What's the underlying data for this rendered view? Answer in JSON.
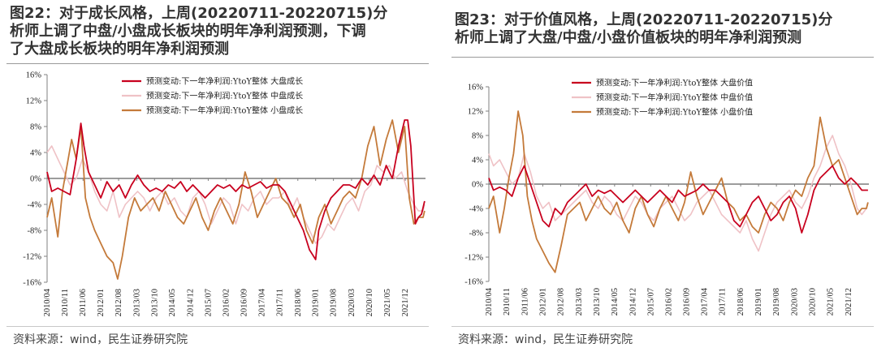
{
  "colors": {
    "large": "#c8001e",
    "mid": "#efc2c6",
    "small": "#c47a3a",
    "axis": "#808080"
  },
  "source": "资料来源：wind，民生证券研究院",
  "chart_data": [
    {
      "type": "line",
      "title": "图22：对于成长风格，上周(20220711-20220715)分析师上调了中盘/小盘成长板块的明年净利润预测，下调了大盘成长板块的明年净利润预测",
      "title_lines": [
        "图22：对于成长风格，上周(20220711-20220715)分",
        "析师上调了中盘/小盘成长板块的明年净利润预测，下调",
        "了大盘成长板块的明年净利润预测"
      ],
      "ylim": [
        -16,
        16
      ],
      "yticks": [
        16,
        12,
        8,
        4,
        0,
        -4,
        -8,
        -12,
        -16
      ],
      "ytick_labels": [
        "16%",
        "12%",
        "8%",
        "4%",
        "0%",
        "-4%",
        "-8%",
        "-12%",
        "-16%"
      ],
      "x_range": [
        2010.25,
        2022.58
      ],
      "xticks": [
        2010.25,
        2010.83,
        2011.42,
        2012.0,
        2012.58,
        2013.17,
        2013.75,
        2014.33,
        2014.92,
        2015.5,
        2016.08,
        2016.67,
        2017.25,
        2017.83,
        2018.42,
        2019.0,
        2019.58,
        2020.17,
        2020.75,
        2021.33,
        2021.92
      ],
      "xtick_labels": [
        "2010/04",
        "2010/11",
        "2011/06",
        "2012/01",
        "2012/08",
        "2013/03",
        "2013/10",
        "2014/05",
        "2014/12",
        "2015/07",
        "2016/02",
        "2016/09",
        "2017/04",
        "2017/11",
        "2018/06",
        "2019/01",
        "2019/08",
        "2020/03",
        "2020/10",
        "2021/05",
        "2021/12"
      ],
      "series": [
        {
          "name": "预测变动:下一年净利润:YtoY整体 大盘成长",
          "color_key": "large",
          "x": [
            2010.25,
            2010.4,
            2010.6,
            2010.8,
            2011.0,
            2011.2,
            2011.35,
            2011.45,
            2011.6,
            2011.8,
            2012.0,
            2012.2,
            2012.4,
            2012.6,
            2012.8,
            2013.0,
            2013.2,
            2013.4,
            2013.6,
            2013.8,
            2014.0,
            2014.2,
            2014.4,
            2014.6,
            2014.8,
            2015.0,
            2015.2,
            2015.4,
            2015.6,
            2015.8,
            2016.0,
            2016.2,
            2016.4,
            2016.6,
            2016.8,
            2017.0,
            2017.2,
            2017.4,
            2017.6,
            2017.8,
            2018.0,
            2018.2,
            2018.4,
            2018.6,
            2018.8,
            2019.0,
            2019.1,
            2019.3,
            2019.5,
            2019.7,
            2019.9,
            2020.1,
            2020.3,
            2020.5,
            2020.7,
            2020.9,
            2021.1,
            2021.3,
            2021.5,
            2021.7,
            2021.9,
            2022.0,
            2022.1,
            2022.25,
            2022.35,
            2022.45,
            2022.55
          ],
          "y": [
            1,
            -2,
            -1.5,
            -2,
            -2.5,
            3,
            8.5,
            5,
            1,
            -1,
            -3,
            -0.5,
            -2,
            -1,
            -3,
            -1,
            0.5,
            -1,
            -2,
            -1.5,
            -2,
            -1,
            -1.5,
            -0.5,
            -2,
            -1,
            -2,
            -3,
            -2,
            -1,
            -1.5,
            -1,
            -2,
            -1,
            -1.5,
            -1,
            -0.5,
            -1.5,
            -1,
            -1,
            -2,
            -4,
            -6,
            -8,
            -11,
            -12.5,
            -8,
            -5,
            -3,
            -2,
            -1,
            -1,
            -1.5,
            0,
            -1,
            0.5,
            -1,
            2,
            0,
            5,
            9,
            9,
            5,
            -7,
            -6,
            -5.5,
            -3.5
          ]
        },
        {
          "name": "预测变动:下一年净利润:YtoY整体 中盘成长",
          "color_key": "mid",
          "x": [
            2010.25,
            2010.4,
            2010.6,
            2010.8,
            2011.0,
            2011.2,
            2011.4,
            2011.6,
            2011.8,
            2012.0,
            2012.2,
            2012.4,
            2012.6,
            2012.8,
            2013.0,
            2013.2,
            2013.4,
            2013.6,
            2013.8,
            2014.0,
            2014.2,
            2014.4,
            2014.6,
            2014.8,
            2015.0,
            2015.2,
            2015.4,
            2015.6,
            2015.8,
            2016.0,
            2016.2,
            2016.4,
            2016.6,
            2016.8,
            2017.0,
            2017.2,
            2017.4,
            2017.6,
            2017.8,
            2018.0,
            2018.2,
            2018.4,
            2018.6,
            2018.8,
            2019.0,
            2019.2,
            2019.4,
            2019.6,
            2019.8,
            2020.0,
            2020.2,
            2020.4,
            2020.6,
            2020.8,
            2021.0,
            2021.2,
            2021.4,
            2021.6,
            2021.8,
            2022.0,
            2022.2,
            2022.35,
            2022.5,
            2022.55
          ],
          "y": [
            4,
            5,
            3,
            1,
            -1,
            0,
            3,
            1,
            -2,
            -4,
            -5,
            -2,
            -6,
            -4,
            -3,
            -2,
            -3,
            -5,
            -3,
            -2,
            -4,
            -3,
            -5,
            -6,
            -3,
            -2,
            -4,
            -7,
            -5,
            -3,
            -4,
            -7,
            -4,
            -5,
            -3,
            -2,
            -4,
            -3,
            -3,
            -2,
            -5,
            -3,
            -6,
            -8,
            -10,
            -9,
            -7,
            -8,
            -6,
            -4,
            -3,
            -5,
            -2,
            -1,
            2,
            1,
            2,
            0,
            1,
            -2,
            -4,
            -5,
            -5,
            -4
          ]
        },
        {
          "name": "预测变动:下一年净利润:YtoY整体 小盘成长",
          "color_key": "small",
          "x": [
            2010.25,
            2010.4,
            2010.6,
            2010.75,
            2010.9,
            2011.05,
            2011.2,
            2011.35,
            2011.5,
            2011.65,
            2011.8,
            2012.0,
            2012.2,
            2012.4,
            2012.55,
            2012.7,
            2012.9,
            2013.1,
            2013.3,
            2013.5,
            2013.7,
            2013.9,
            2014.1,
            2014.3,
            2014.5,
            2014.7,
            2014.9,
            2015.1,
            2015.3,
            2015.5,
            2015.7,
            2015.9,
            2016.1,
            2016.3,
            2016.5,
            2016.7,
            2016.9,
            2017.1,
            2017.3,
            2017.5,
            2017.7,
            2017.9,
            2018.1,
            2018.3,
            2018.5,
            2018.7,
            2018.9,
            2019.1,
            2019.3,
            2019.5,
            2019.7,
            2019.9,
            2020.1,
            2020.3,
            2020.5,
            2020.7,
            2020.9,
            2021.1,
            2021.3,
            2021.5,
            2021.7,
            2021.9,
            2022.05,
            2022.2,
            2022.35,
            2022.5,
            2022.55
          ],
          "y": [
            -6,
            -3,
            -9,
            -2,
            2,
            6,
            3,
            8,
            -3,
            -6,
            -8,
            -10,
            -12,
            -13,
            -15.5,
            -12,
            -6,
            -3,
            -5,
            -4,
            -3,
            -5,
            -2,
            -4,
            -6,
            -7,
            -5,
            -3,
            -6,
            -8,
            -5,
            -3,
            -5,
            -7,
            -4,
            1,
            -2,
            -6,
            -4,
            -2,
            0,
            -3,
            -4,
            -6,
            -4,
            -8,
            -10,
            -6,
            -4,
            -7,
            -5,
            -3,
            -2,
            -3,
            0,
            5,
            8,
            2,
            6,
            9,
            4,
            8,
            -3,
            -7,
            -6,
            -6,
            -5
          ]
        }
      ]
    },
    {
      "type": "line",
      "title": "图23：对于价值风格，上周(20220711-20220715)分析师上调了大盘/中盘/小盘价值板块的明年净利润预测",
      "title_lines": [
        "图23：对于价值风格，上周(20220711-20220715)分",
        "析师上调了大盘/中盘/小盘价值板块的明年净利润预测"
      ],
      "ylim": [
        -16,
        16
      ],
      "yticks": [
        16,
        12,
        8,
        4,
        0,
        -4,
        -8,
        -12,
        -16
      ],
      "ytick_labels": [
        "16%",
        "12%",
        "8%",
        "4%",
        "0%",
        "-4%",
        "-8%",
        "-12%",
        "-16%"
      ],
      "x_range": [
        2010.25,
        2022.58
      ],
      "xticks": [
        2010.25,
        2010.83,
        2011.42,
        2012.0,
        2012.58,
        2013.17,
        2013.75,
        2014.33,
        2014.92,
        2015.5,
        2016.08,
        2016.67,
        2017.25,
        2017.83,
        2018.42,
        2019.0,
        2019.58,
        2020.17,
        2020.75,
        2021.33,
        2021.92
      ],
      "xtick_labels": [
        "2010/04",
        "2010/11",
        "2011/06",
        "2012/01",
        "2012/08",
        "2013/03",
        "2013/10",
        "2014/05",
        "2014/12",
        "2015/07",
        "2016/02",
        "2016/09",
        "2017/04",
        "2017/11",
        "2018/06",
        "2019/01",
        "2019/08",
        "2020/03",
        "2020/10",
        "2021/05",
        "2021/12"
      ],
      "series": [
        {
          "name": "预测变动:下一年净利润:YtoY整体 大盘价值",
          "color_key": "large",
          "x": [
            2010.25,
            2010.4,
            2010.6,
            2010.8,
            2011.0,
            2011.2,
            2011.4,
            2011.6,
            2011.8,
            2012.0,
            2012.2,
            2012.4,
            2012.6,
            2012.8,
            2013.0,
            2013.2,
            2013.4,
            2013.6,
            2013.8,
            2014.0,
            2014.2,
            2014.4,
            2014.6,
            2014.8,
            2015.0,
            2015.2,
            2015.4,
            2015.6,
            2015.8,
            2016.0,
            2016.2,
            2016.4,
            2016.6,
            2016.8,
            2017.0,
            2017.2,
            2017.4,
            2017.6,
            2017.8,
            2018.0,
            2018.2,
            2018.4,
            2018.6,
            2018.8,
            2019.0,
            2019.2,
            2019.4,
            2019.6,
            2019.8,
            2020.0,
            2020.2,
            2020.4,
            2020.6,
            2020.8,
            2021.0,
            2021.2,
            2021.4,
            2021.6,
            2021.8,
            2022.0,
            2022.2,
            2022.35,
            2022.5,
            2022.55
          ],
          "y": [
            1,
            -1,
            -0.5,
            -1,
            -2,
            1,
            3,
            0,
            -3,
            -6,
            -7,
            -4,
            -5,
            -3,
            -2,
            -1,
            0,
            -2,
            -1,
            -1.5,
            -1,
            -2,
            -3,
            -2,
            -1,
            -2,
            -3,
            -2,
            -1,
            -2,
            -3,
            -1,
            -2,
            -1.5,
            -1,
            0,
            -1,
            -1,
            -2,
            -3,
            -6,
            -7,
            -5,
            -3,
            -2,
            -4,
            -6,
            -5,
            -3,
            -2,
            -4,
            -8,
            -5,
            -1,
            1,
            2,
            3,
            1,
            0,
            1,
            0,
            -1,
            -1,
            -1
          ]
        },
        {
          "name": "预测变动:下一年净利润:YtoY整体 中盘价值",
          "color_key": "mid",
          "x": [
            2010.25,
            2010.4,
            2010.6,
            2010.8,
            2011.0,
            2011.2,
            2011.4,
            2011.6,
            2011.8,
            2012.0,
            2012.2,
            2012.4,
            2012.6,
            2012.8,
            2013.0,
            2013.2,
            2013.4,
            2013.6,
            2013.8,
            2014.0,
            2014.2,
            2014.4,
            2014.6,
            2014.8,
            2015.0,
            2015.2,
            2015.4,
            2015.6,
            2015.8,
            2016.0,
            2016.2,
            2016.4,
            2016.6,
            2016.8,
            2017.0,
            2017.2,
            2017.4,
            2017.6,
            2017.8,
            2018.0,
            2018.2,
            2018.4,
            2018.6,
            2018.8,
            2019.0,
            2019.2,
            2019.4,
            2019.6,
            2019.8,
            2020.0,
            2020.2,
            2020.4,
            2020.6,
            2020.8,
            2021.0,
            2021.2,
            2021.4,
            2021.6,
            2021.8,
            2022.0,
            2022.2,
            2022.35,
            2022.5,
            2022.55
          ],
          "y": [
            5,
            3,
            4,
            2,
            0,
            1,
            5,
            2,
            -2,
            -4,
            -3,
            -6,
            -5,
            -4,
            -3,
            -2,
            -1,
            -3,
            -4,
            -2,
            -3,
            -5,
            -6,
            -4,
            -2,
            -3,
            -5,
            -6,
            -4,
            -3,
            -2,
            -4,
            -6,
            -5,
            -3,
            -2,
            -1,
            -3,
            -5,
            -6,
            -7,
            -8,
            -6,
            -9,
            -11,
            -8,
            -5,
            -3,
            -2,
            -1,
            -3,
            -4,
            -2,
            1,
            3,
            6,
            8,
            5,
            3,
            0,
            -4,
            -5,
            -4,
            -3
          ]
        },
        {
          "name": "预测变动:下一年净利润:YtoY整体 小盘价值",
          "color_key": "small",
          "x": [
            2010.25,
            2010.4,
            2010.6,
            2010.75,
            2010.9,
            2011.05,
            2011.2,
            2011.35,
            2011.5,
            2011.65,
            2011.8,
            2012.0,
            2012.2,
            2012.4,
            2012.6,
            2012.8,
            2013.0,
            2013.2,
            2013.4,
            2013.6,
            2013.8,
            2014.0,
            2014.2,
            2014.4,
            2014.6,
            2014.8,
            2015.0,
            2015.2,
            2015.4,
            2015.6,
            2015.8,
            2016.0,
            2016.2,
            2016.4,
            2016.6,
            2016.8,
            2017.0,
            2017.2,
            2017.4,
            2017.6,
            2017.8,
            2018.0,
            2018.2,
            2018.4,
            2018.6,
            2018.8,
            2019.0,
            2019.2,
            2019.4,
            2019.6,
            2019.8,
            2020.0,
            2020.2,
            2020.4,
            2020.6,
            2020.8,
            2021.0,
            2021.2,
            2021.4,
            2021.6,
            2021.8,
            2022.0,
            2022.2,
            2022.35,
            2022.5,
            2022.55
          ],
          "y": [
            -4,
            -2,
            -8,
            -4,
            1,
            5,
            12,
            8,
            -2,
            -6,
            -9,
            -11,
            -13,
            -14.5,
            -10,
            -5,
            -4,
            -3,
            -6,
            -4,
            -2,
            -4,
            -5,
            -3,
            -6,
            -8,
            -4,
            -2,
            -5,
            -7,
            -4,
            -2,
            -4,
            -6,
            -3,
            2,
            -2,
            -5,
            -3,
            -1,
            1,
            -3,
            -4,
            -6,
            -5,
            -7,
            -8,
            -5,
            -3,
            -4,
            -6,
            -3,
            -1,
            -2,
            1,
            3,
            11,
            6,
            3,
            4,
            1,
            -2,
            -5,
            -4,
            -4,
            -3
          ]
        }
      ]
    }
  ]
}
